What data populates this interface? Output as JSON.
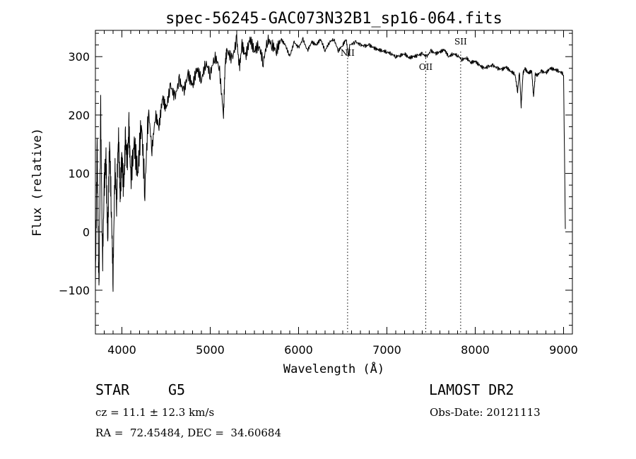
{
  "chart_data": {
    "type": "line",
    "title": "spec-56245-GAC073N32B1_sp16-064.fits",
    "xlabel": "Wavelength (Å)",
    "ylabel": "Flux (relative)",
    "xlim": [
      3700,
      9100
    ],
    "ylim": [
      -175,
      345
    ],
    "x_ticks": [
      4000,
      5000,
      6000,
      7000,
      8000,
      9000
    ],
    "y_ticks": [
      -100,
      0,
      100,
      200,
      300
    ],
    "grid": false,
    "series": [
      {
        "x": [
          3700,
          3720,
          3740,
          3760,
          3780,
          3800,
          3820,
          3840,
          3860,
          3880,
          3900,
          3920,
          3940,
          3960,
          3980,
          4000,
          4020,
          4040,
          4060,
          4080,
          4100,
          4140,
          4180,
          4220,
          4260,
          4300,
          4340,
          4380,
          4420,
          4460,
          4500,
          4550,
          4600,
          4650,
          4700,
          4750,
          4800,
          4850,
          4900,
          4950,
          5000,
          5050,
          5100,
          5150,
          5170,
          5190,
          5250,
          5300,
          5330,
          5360,
          5400,
          5450,
          5500,
          5550,
          5600,
          5650,
          5700,
          5750,
          5800,
          5850,
          5900,
          5950,
          6000,
          6050,
          6100,
          6150,
          6200,
          6250,
          6300,
          6350,
          6400,
          6450,
          6500,
          6540,
          6563,
          6580,
          6650,
          6700,
          6750,
          6800,
          6850,
          6900,
          6950,
          7000,
          7050,
          7100,
          7150,
          7200,
          7250,
          7300,
          7350,
          7400,
          7450,
          7500,
          7550,
          7600,
          7650,
          7700,
          7750,
          7800,
          7850,
          7900,
          7950,
          8000,
          8050,
          8100,
          8150,
          8200,
          8250,
          8300,
          8350,
          8400,
          8450,
          8480,
          8500,
          8520,
          8540,
          8560,
          8600,
          8640,
          8660,
          8680,
          8700,
          8750,
          8800,
          8850,
          8900,
          8950,
          9000,
          9020
        ],
        "y": [
          -90,
          150,
          -110,
          210,
          -60,
          80,
          130,
          -20,
          160,
          40,
          -80,
          110,
          50,
          170,
          60,
          130,
          70,
          160,
          120,
          180,
          90,
          150,
          100,
          190,
          70,
          210,
          140,
          200,
          180,
          230,
          210,
          250,
          230,
          260,
          240,
          270,
          250,
          280,
          260,
          290,
          270,
          300,
          285,
          200,
          290,
          310,
          295,
          330,
          280,
          320,
          300,
          330,
          310,
          320,
          290,
          330,
          320,
          310,
          330,
          320,
          300,
          325,
          315,
          330,
          310,
          325,
          320,
          330,
          310,
          325,
          330,
          310,
          320,
          330,
          300,
          320,
          325,
          320,
          318,
          320,
          315,
          312,
          310,
          308,
          305,
          300,
          302,
          305,
          298,
          300,
          302,
          305,
          300,
          310,
          305,
          308,
          312,
          300,
          305,
          302,
          295,
          298,
          290,
          292,
          285,
          280,
          283,
          285,
          280,
          278,
          282,
          275,
          270,
          240,
          275,
          215,
          270,
          280,
          272,
          275,
          230,
          270,
          268,
          275,
          272,
          280,
          278,
          275,
          270,
          5
        ],
        "color": "#000000"
      }
    ],
    "lines": [
      {
        "label": "NII",
        "x": 6555
      },
      {
        "label": "OII",
        "x": 7440
      },
      {
        "label": "SII",
        "x": 7835
      }
    ]
  },
  "info": {
    "class": "STAR",
    "subclass": "G5",
    "survey": "LAMOST DR2",
    "cz": "cz = 11.1 ± 12.3 km/s",
    "obs_date": "Obs-Date: 20121113",
    "coords": "RA =  72.45484, DEC =  34.60684"
  }
}
